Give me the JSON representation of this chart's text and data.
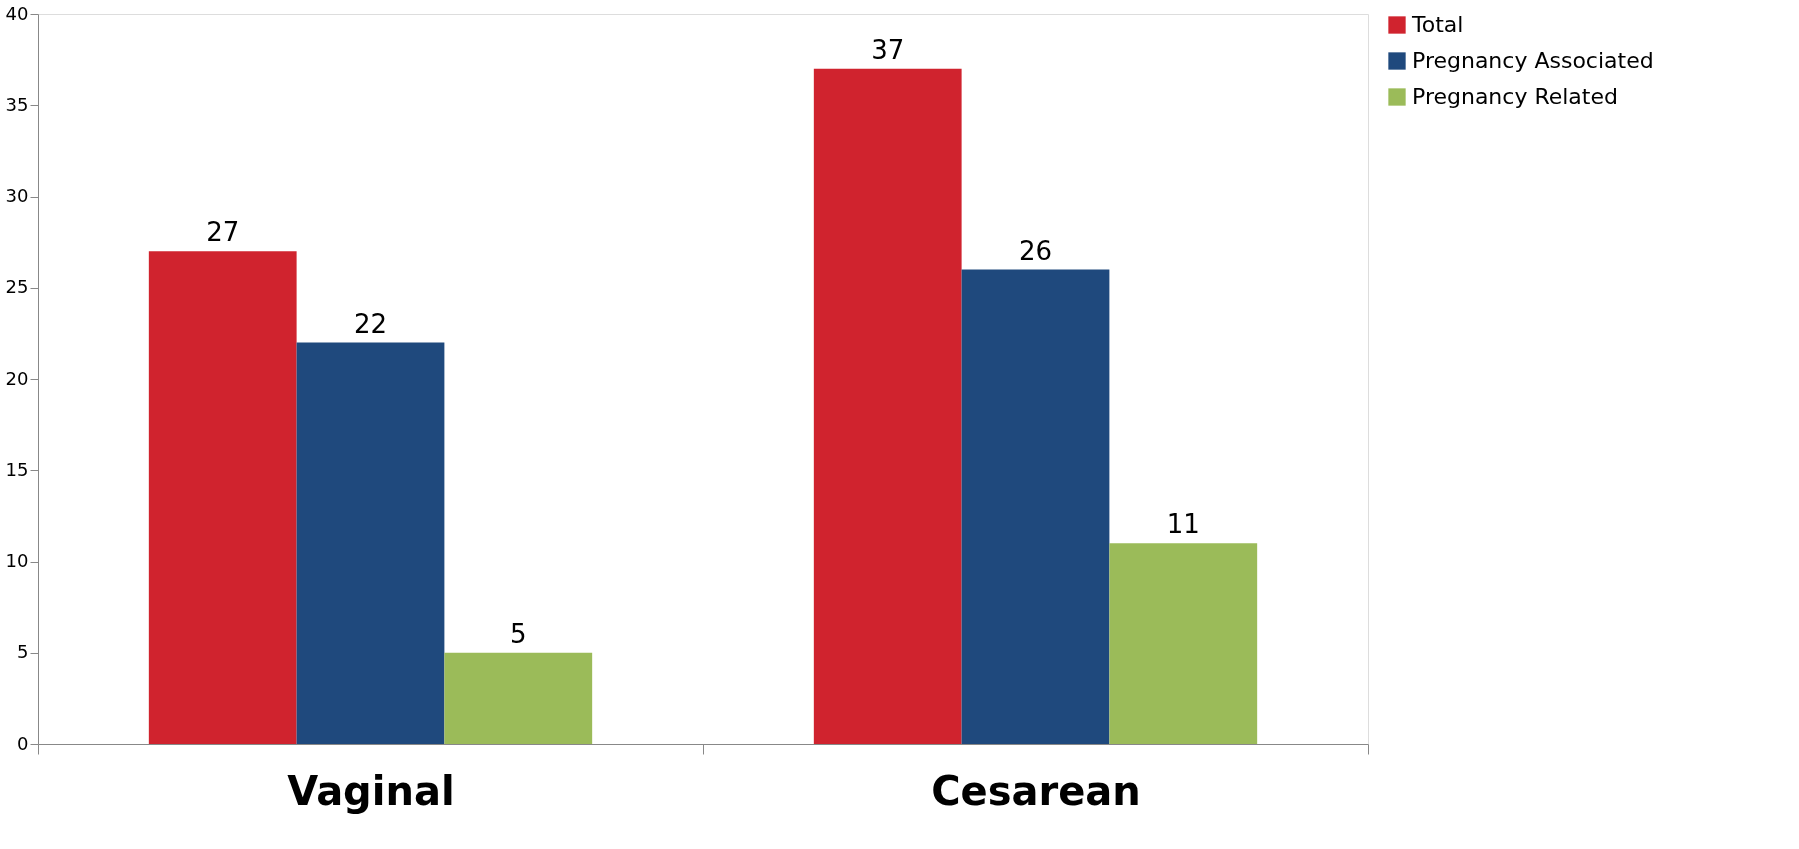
{
  "chart_data": {
    "type": "bar",
    "categories": [
      "Vaginal",
      "Cesarean"
    ],
    "series": [
      {
        "name": "Total",
        "color": "#d0232e",
        "values": [
          27,
          37
        ]
      },
      {
        "name": "Pregnancy Associated",
        "color": "#1f497d",
        "values": [
          22,
          26
        ]
      },
      {
        "name": "Pregnancy Related",
        "color": "#9bbb59",
        "values": [
          5,
          11
        ]
      }
    ],
    "ylim": [
      0,
      40
    ],
    "yticks": [
      0,
      5,
      10,
      15,
      20,
      25,
      30,
      35,
      40
    ],
    "grid": false,
    "legend": "right",
    "data_labels": true
  }
}
